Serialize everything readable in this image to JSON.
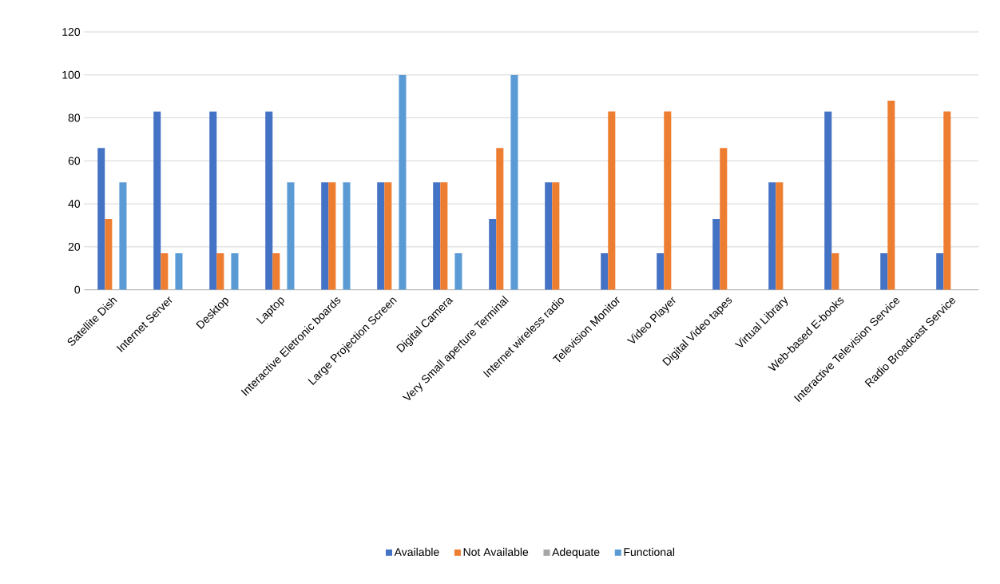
{
  "chart_data": {
    "type": "bar",
    "categories": [
      "Satellite Dish",
      "Internet Server",
      "Desktop",
      "Laptop",
      "Interactive Eletronic boards",
      "Large Projection Screen",
      "Digital Camera",
      "Very Small aperture Terminal",
      "Internet wireless radio",
      "Television Monitor",
      "Video Player",
      "Digital Video tapes",
      "Virtual Library",
      "Web-based E-books",
      "Interactive Television Service",
      "Radio Broadcast Service"
    ],
    "series": [
      {
        "name": "Available",
        "color": "#4472c4",
        "values": [
          66,
          83,
          83,
          83,
          50,
          50,
          50,
          33,
          50,
          17,
          17,
          33,
          50,
          83,
          17,
          17
        ]
      },
      {
        "name": "Not Available",
        "color": "#ed7d31",
        "values": [
          33,
          17,
          17,
          17,
          50,
          50,
          50,
          66,
          50,
          83,
          83,
          66,
          50,
          17,
          88,
          83
        ]
      },
      {
        "name": "Adequate",
        "color": "#a5a5a5",
        "values": [
          0,
          0,
          0,
          0,
          0,
          0,
          0,
          0,
          0,
          0,
          0,
          0,
          0,
          0,
          0,
          0
        ]
      },
      {
        "name": "Functional",
        "color": "#5b9bd5",
        "values": [
          50,
          17,
          17,
          50,
          50,
          100,
          17,
          100,
          0,
          0,
          0,
          0,
          0,
          0,
          0,
          0
        ]
      }
    ],
    "ylim": [
      0,
      120
    ],
    "yticks": [
      0,
      20,
      40,
      60,
      80,
      100,
      120
    ],
    "grid": "y",
    "legend": "bottom"
  }
}
